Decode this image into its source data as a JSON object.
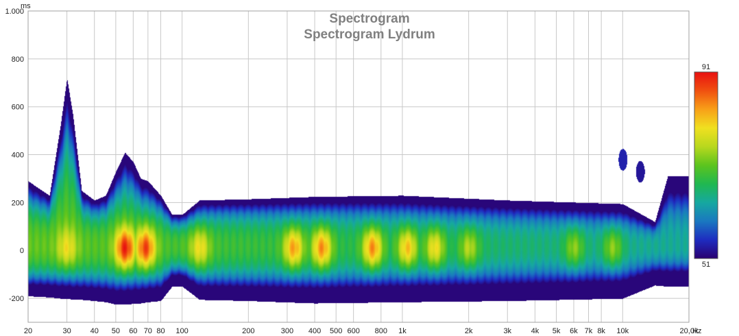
{
  "chart_data": {
    "type": "heatmap",
    "title": "Spectrogram",
    "subtitle": "Spectrogram Lydrum",
    "x_unit": "Hz",
    "y_unit": "ms",
    "x_scale": "log",
    "xlim": [
      20,
      20000
    ],
    "ylim": [
      -300,
      1000
    ],
    "grid": true,
    "x_ticks": [
      {
        "v": 20,
        "label": "20"
      },
      {
        "v": 30,
        "label": "30"
      },
      {
        "v": 40,
        "label": "40"
      },
      {
        "v": 50,
        "label": "50"
      },
      {
        "v": 60,
        "label": "60"
      },
      {
        "v": 70,
        "label": "70"
      },
      {
        "v": 80,
        "label": "80"
      },
      {
        "v": 100,
        "label": "100"
      },
      {
        "v": 200,
        "label": "200"
      },
      {
        "v": 300,
        "label": "300"
      },
      {
        "v": 400,
        "label": "400"
      },
      {
        "v": 500,
        "label": "500"
      },
      {
        "v": 600,
        "label": "600"
      },
      {
        "v": 800,
        "label": "800"
      },
      {
        "v": 1000,
        "label": "1k"
      },
      {
        "v": 2000,
        "label": "2k"
      },
      {
        "v": 3000,
        "label": "3k"
      },
      {
        "v": 4000,
        "label": "4k"
      },
      {
        "v": 5000,
        "label": "5k"
      },
      {
        "v": 6000,
        "label": "6k"
      },
      {
        "v": 7000,
        "label": "7k"
      },
      {
        "v": 8000,
        "label": "8k"
      },
      {
        "v": 10000,
        "label": "10k"
      },
      {
        "v": 20000,
        "label": "20,0k"
      }
    ],
    "y_ticks": [
      {
        "v": 1000,
        "label": "1.000"
      },
      {
        "v": 800,
        "label": "800"
      },
      {
        "v": 600,
        "label": "600"
      },
      {
        "v": 400,
        "label": "400"
      },
      {
        "v": 200,
        "label": "200"
      },
      {
        "v": 0,
        "label": "0"
      },
      {
        "v": -200,
        "label": "-200"
      }
    ],
    "colorbar": {
      "min": 51,
      "max": 91,
      "min_label": "51",
      "max_label": "91"
    },
    "colormap": [
      "#2a0070",
      "#1e2cc0",
      "#1a78c0",
      "#16a8a0",
      "#20b850",
      "#5cc41e",
      "#b8d81e",
      "#f0e020",
      "#f8a018",
      "#f05010",
      "#e81010"
    ],
    "envelope": [
      [
        20,
        290,
        -190
      ],
      [
        25,
        230,
        -195
      ],
      [
        28,
        520,
        -200
      ],
      [
        30,
        720,
        -200
      ],
      [
        32,
        560,
        -205
      ],
      [
        35,
        250,
        -205
      ],
      [
        40,
        210,
        -210
      ],
      [
        45,
        230,
        -215
      ],
      [
        50,
        330,
        -225
      ],
      [
        55,
        410,
        -225
      ],
      [
        60,
        370,
        -222
      ],
      [
        65,
        300,
        -220
      ],
      [
        70,
        290,
        -215
      ],
      [
        80,
        230,
        -210
      ],
      [
        90,
        150,
        -150
      ],
      [
        100,
        150,
        -150
      ],
      [
        120,
        210,
        -205
      ],
      [
        200,
        215,
        -210
      ],
      [
        400,
        225,
        -220
      ],
      [
        1000,
        230,
        -215
      ],
      [
        3000,
        210,
        -210
      ],
      [
        10000,
        195,
        -200
      ],
      [
        14000,
        120,
        -145
      ],
      [
        16000,
        310,
        -150
      ],
      [
        20000,
        310,
        -150
      ]
    ],
    "peaks": [
      {
        "f": 30,
        "t": 40,
        "level": 80
      },
      {
        "f": 55,
        "t": 10,
        "level": 91
      },
      {
        "f": 68,
        "t": 20,
        "level": 89
      },
      {
        "f": 120,
        "t": 20,
        "level": 80
      },
      {
        "f": 320,
        "t": 15,
        "level": 84
      },
      {
        "f": 430,
        "t": 5,
        "level": 85
      },
      {
        "f": 730,
        "t": 0,
        "level": 85
      },
      {
        "f": 1050,
        "t": 5,
        "level": 82
      },
      {
        "f": 1400,
        "t": 0,
        "level": 80
      },
      {
        "f": 2000,
        "t": 0,
        "level": 76
      },
      {
        "f": 6000,
        "t": 0,
        "level": 74
      },
      {
        "f": 9000,
        "t": 0,
        "level": 74
      }
    ],
    "late_patches": [
      {
        "f": 10000,
        "t": 380,
        "level": 54
      },
      {
        "f": 12000,
        "t": 330,
        "level": 53
      }
    ]
  }
}
